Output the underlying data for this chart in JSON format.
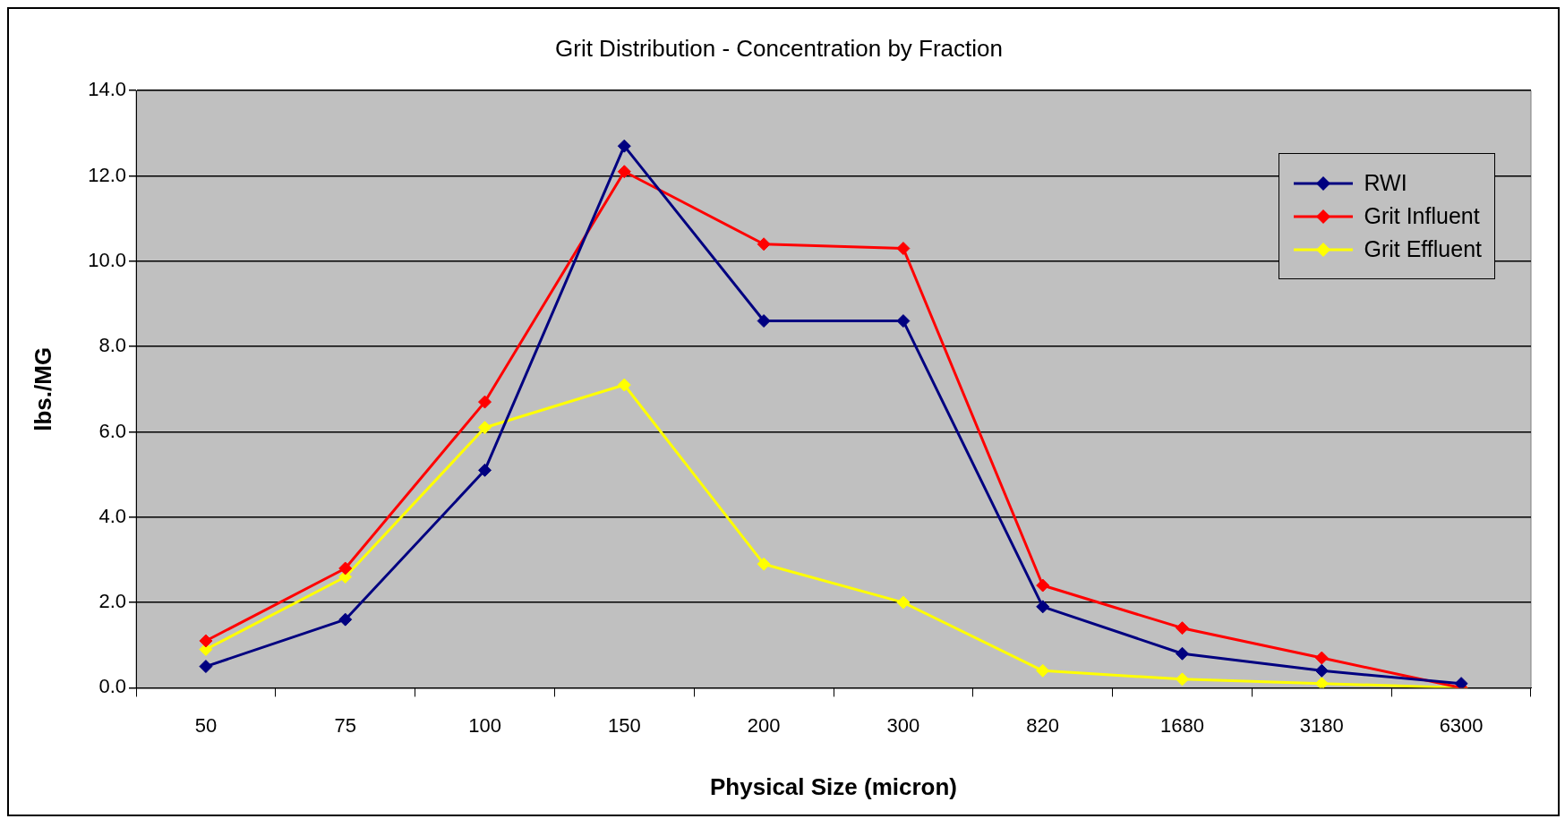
{
  "chart_data": {
    "type": "line",
    "title": "Grit Distribution - Concentration by Fraction",
    "xlabel": "Physical Size (micron)",
    "ylabel": "lbs./MG",
    "categories": [
      "50",
      "75",
      "100",
      "150",
      "200",
      "300",
      "820",
      "1680",
      "3180",
      "6300"
    ],
    "series": [
      {
        "name": "RWI",
        "color": "#000080",
        "values": [
          0.5,
          1.6,
          5.1,
          12.7,
          8.6,
          8.6,
          1.9,
          0.8,
          0.4,
          0.1
        ]
      },
      {
        "name": "Grit Influent",
        "color": "#ff0000",
        "values": [
          1.1,
          2.8,
          6.7,
          12.1,
          10.4,
          10.3,
          2.4,
          1.4,
          0.7,
          0.0
        ]
      },
      {
        "name": "Grit Effluent",
        "color": "#ffff00",
        "values": [
          0.9,
          2.6,
          6.1,
          7.1,
          2.9,
          2.0,
          0.4,
          0.2,
          0.1,
          0.0
        ]
      }
    ],
    "ylim": [
      0,
      14
    ],
    "yticks": [
      {
        "value": 0,
        "label": "0.0"
      },
      {
        "value": 2,
        "label": "2.0"
      },
      {
        "value": 4,
        "label": "4.0"
      },
      {
        "value": 6,
        "label": "6.0"
      },
      {
        "value": 8,
        "label": "8.0"
      },
      {
        "value": 10,
        "label": "10.0"
      },
      {
        "value": 12,
        "label": "12.0"
      },
      {
        "value": 14,
        "label": "14.0"
      }
    ],
    "grid": "y",
    "legend": "top right",
    "marker": "diamond",
    "line_style": "solid"
  }
}
